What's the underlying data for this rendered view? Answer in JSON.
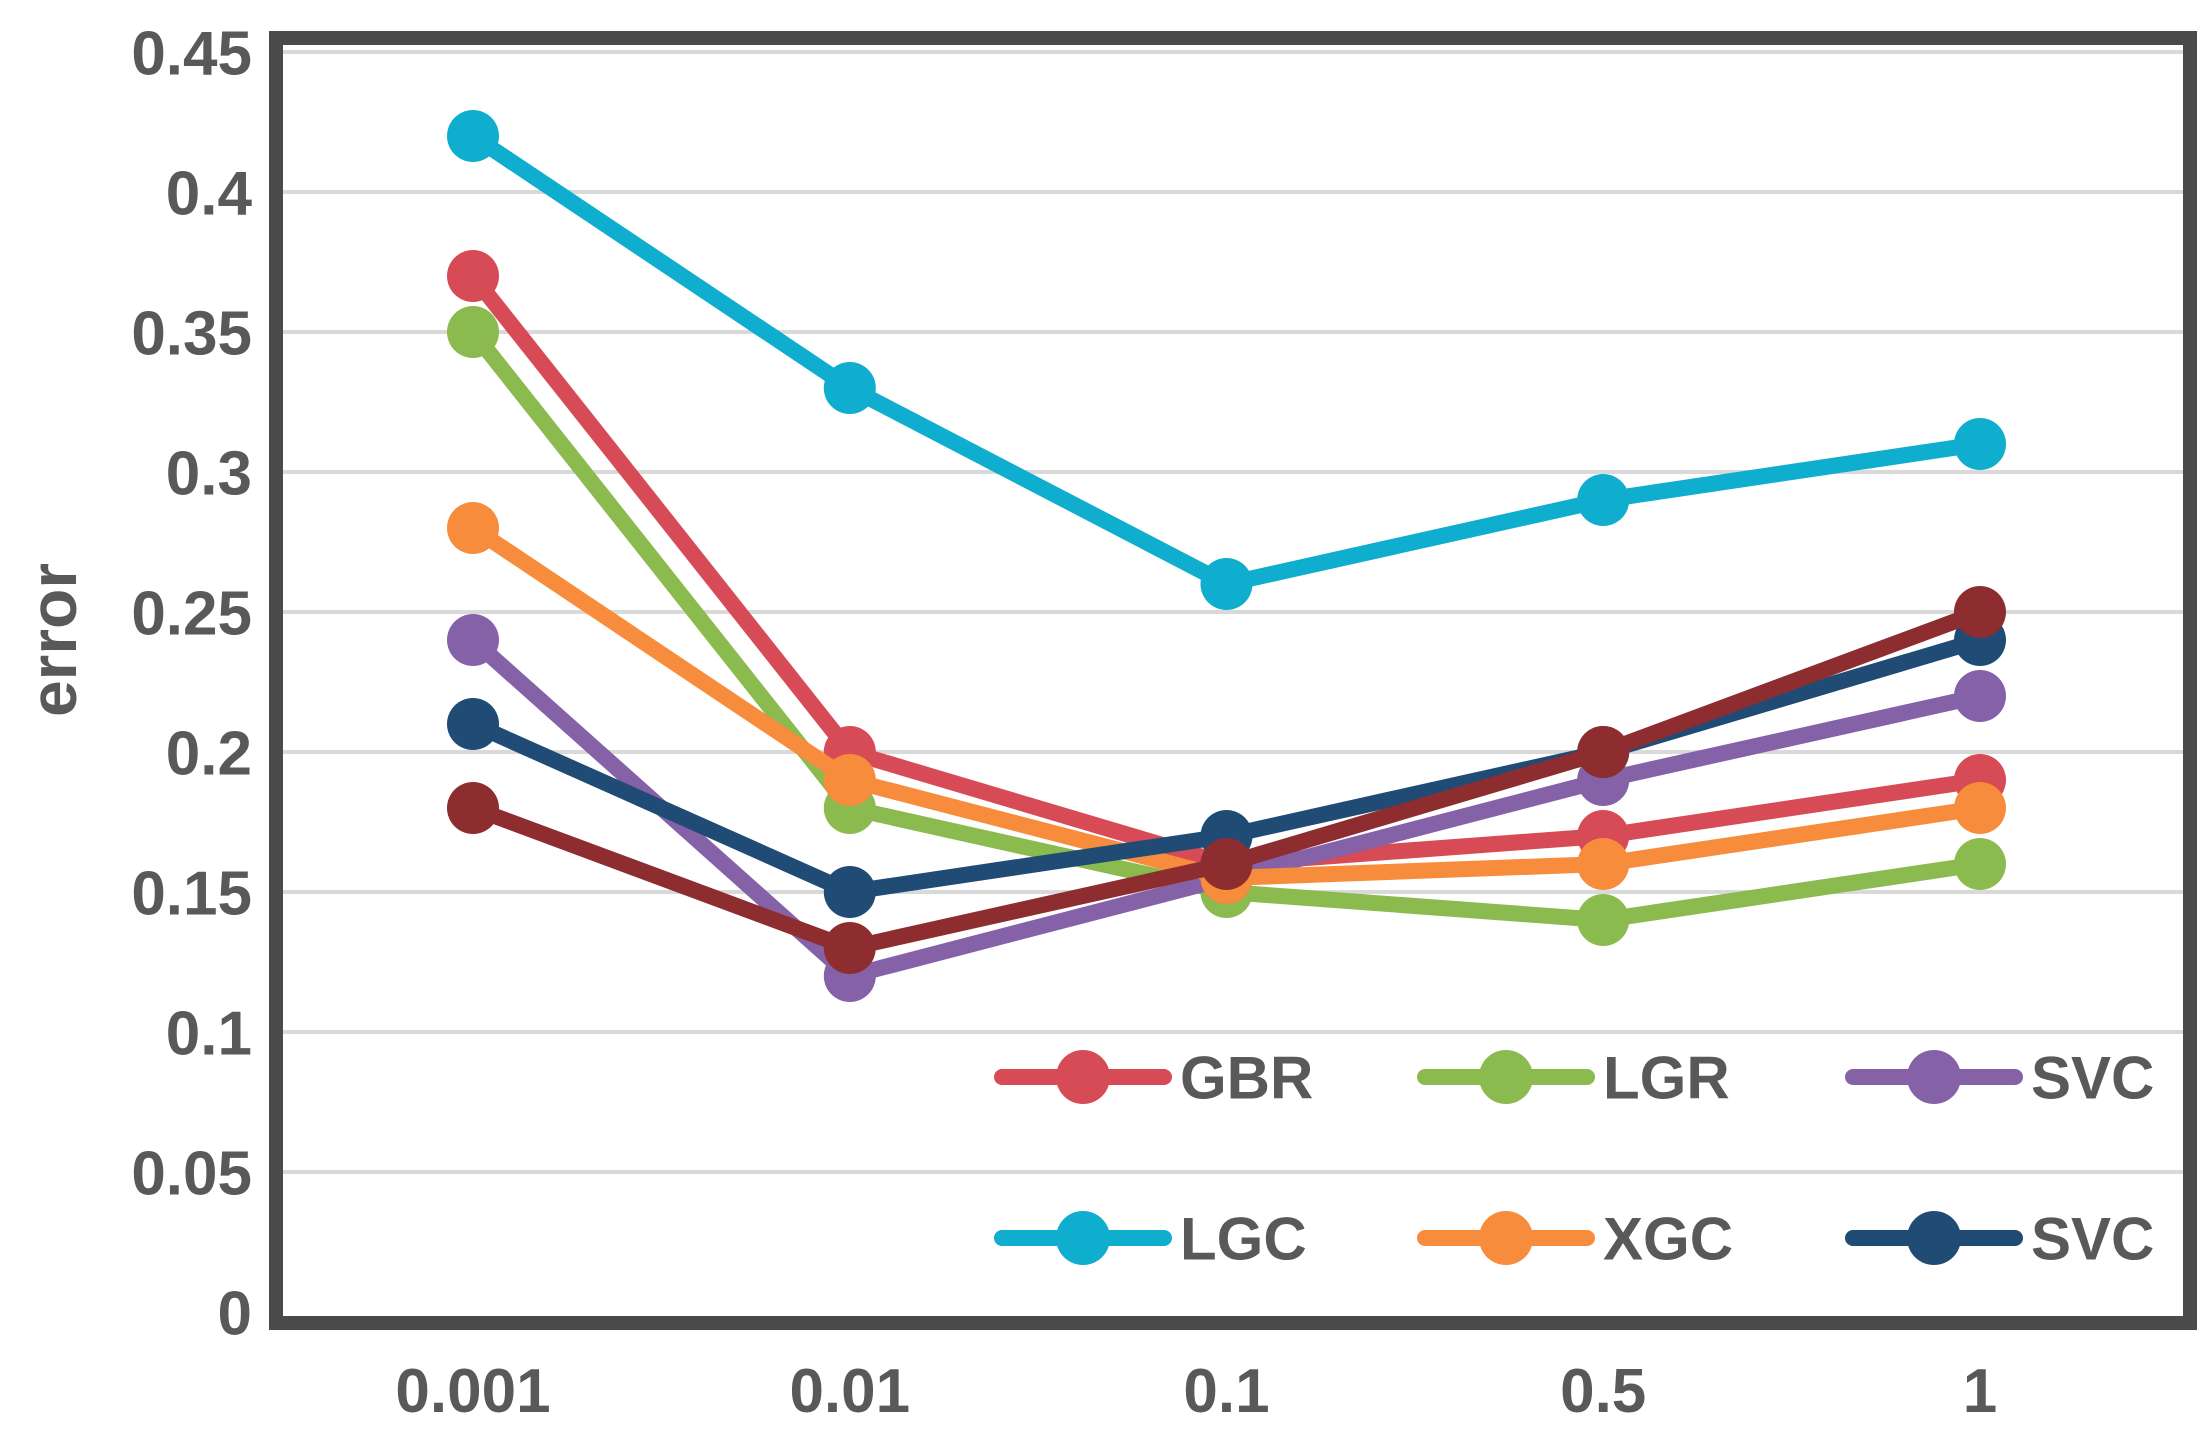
{
  "chart_data": {
    "type": "line",
    "title": "",
    "xlabel": "",
    "ylabel": "error",
    "x_categories": [
      "0.001",
      "0.01",
      "0.1",
      "0.5",
      "1"
    ],
    "y_ticks": [
      0,
      0.05,
      0.1,
      0.15,
      0.2,
      0.25,
      0.3,
      0.35,
      0.4,
      0.45
    ],
    "y_tick_labels": [
      "0",
      "0.05",
      "0.1",
      "0.15",
      "0.2",
      "0.25",
      "0.3",
      "0.35",
      "0.4",
      "0.45"
    ],
    "ylim": [
      0,
      0.45
    ],
    "grid": "horizontal-only",
    "legend_position": "inside-bottom-right-two-rows",
    "series": [
      {
        "name": "GBR",
        "color": "#D74B57",
        "in_legend": true,
        "values": [
          0.37,
          0.2,
          0.16,
          0.17,
          0.19
        ]
      },
      {
        "name": "LGR",
        "color": "#8BBA4E",
        "in_legend": true,
        "values": [
          0.35,
          0.18,
          0.15,
          0.14,
          0.16
        ]
      },
      {
        "name": "SVC",
        "color": "#8561A8",
        "in_legend": true,
        "values": [
          0.24,
          0.12,
          0.155,
          0.19,
          0.22
        ]
      },
      {
        "name": "LGC",
        "color": "#0FADCE",
        "in_legend": true,
        "values": [
          0.42,
          0.33,
          0.26,
          0.29,
          0.31
        ]
      },
      {
        "name": "XGC",
        "color": "#F68C3C",
        "in_legend": true,
        "values": [
          0.28,
          0.19,
          0.155,
          0.16,
          0.18
        ]
      },
      {
        "name": "SVC",
        "color": "#1F4B74",
        "in_legend": true,
        "values": [
          0.21,
          0.15,
          0.17,
          0.2,
          0.24
        ]
      },
      {
        "name": "",
        "color": "#8E2D30",
        "in_legend": false,
        "values": [
          0.18,
          0.13,
          0.16,
          0.2,
          0.25
        ]
      }
    ],
    "colors": {
      "axis_frame": "#4A4A4A",
      "gridline": "#D9D9D9",
      "labels": "#595959"
    }
  }
}
